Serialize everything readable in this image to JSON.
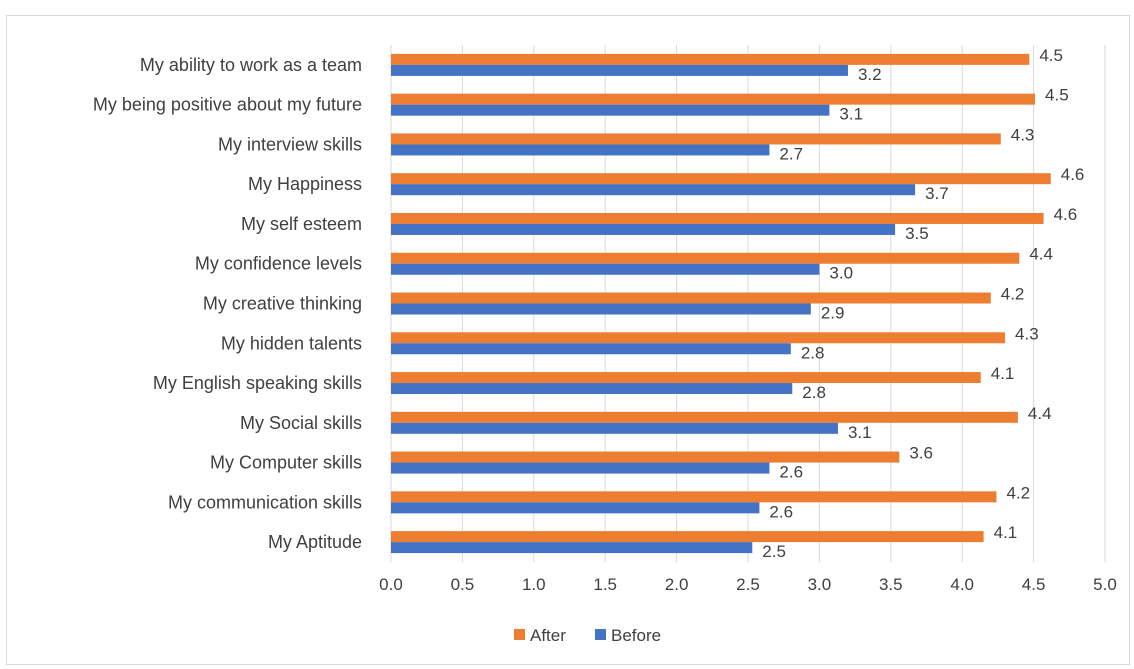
{
  "chart_data": {
    "type": "bar",
    "orientation": "horizontal",
    "categories": [
      "My ability to work as a team",
      "My being positive about my future",
      "My interview skills",
      "My Happiness",
      "My self esteem",
      "My confidence levels",
      "My creative thinking",
      "My hidden talents",
      "My English speaking skills",
      "My Social skills",
      "My Computer skills",
      "My communication skills",
      "My Aptitude"
    ],
    "series": [
      {
        "name": "After",
        "color": "#ed7d31",
        "values": [
          4.47,
          4.51,
          4.27,
          4.62,
          4.57,
          4.4,
          4.2,
          4.3,
          4.13,
          4.39,
          3.56,
          4.24,
          4.15
        ],
        "labels": [
          "4.5",
          "4.5",
          "4.3",
          "4.6",
          "4.6",
          "4.4",
          "4.2",
          "4.3",
          "4.1",
          "4.4",
          "3.6",
          "4.2",
          "4.1"
        ]
      },
      {
        "name": "Before",
        "color": "#4472c4",
        "values": [
          3.2,
          3.07,
          2.65,
          3.67,
          3.53,
          3.0,
          2.94,
          2.8,
          2.81,
          3.13,
          2.65,
          2.58,
          2.53
        ],
        "labels": [
          "3.2",
          "3.1",
          "2.7",
          "3.7",
          "3.5",
          "3.0",
          "2.9",
          "2.8",
          "2.8",
          "3.1",
          "2.6",
          "2.6",
          "2.5"
        ]
      }
    ],
    "xlim": [
      0,
      5
    ],
    "xticks": [
      "0.0",
      "0.5",
      "1.0",
      "1.5",
      "2.0",
      "2.5",
      "3.0",
      "3.5",
      "4.0",
      "4.5",
      "5.0"
    ],
    "grid": true,
    "legend": "bottom",
    "title": "",
    "xlabel": "",
    "ylabel": ""
  }
}
